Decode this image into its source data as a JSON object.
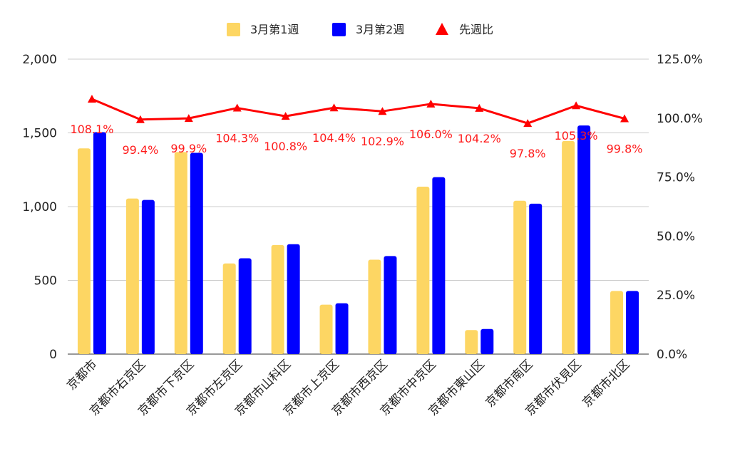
{
  "chart_data": {
    "type": "bar",
    "categories": [
      "京都市",
      "京都市右京区",
      "京都市下京区",
      "京都市左京区",
      "京都市山科区",
      "京都市上京区",
      "京都市西京区",
      "京都市中京区",
      "京都市東山区",
      "京都市南区",
      "京都市伏見区",
      "京都市北区"
    ],
    "series": [
      {
        "name": "3月第1週",
        "type": "bar",
        "axis": "left",
        "color": "#fdd663",
        "values": [
          1395,
          1055,
          1370,
          615,
          740,
          335,
          640,
          1135,
          163,
          1040,
          1445,
          428
        ]
      },
      {
        "name": "3月第2週",
        "type": "bar",
        "axis": "left",
        "color": "#0000ff",
        "values": [
          1505,
          1045,
          1365,
          650,
          745,
          345,
          665,
          1200,
          170,
          1020,
          1550,
          428
        ]
      },
      {
        "name": "先週比",
        "type": "line",
        "axis": "right",
        "marker": "triangle",
        "color": "#ff0000",
        "values": [
          108.1,
          99.4,
          99.9,
          104.3,
          100.8,
          104.4,
          102.9,
          106.0,
          104.2,
          97.8,
          105.3,
          99.8
        ]
      }
    ],
    "line_data_labels": [
      "108.1%",
      "99.4%",
      "99.9%",
      "104.3%",
      "100.8%",
      "104.4%",
      "102.9%",
      "106.0%",
      "104.2%",
      "97.8%",
      "105.3%",
      "99.8%"
    ],
    "y_left": {
      "ylim": [
        0,
        2000
      ],
      "ticks": [
        0,
        500,
        1000,
        1500,
        2000
      ],
      "tick_labels": [
        "0",
        "500",
        "1,000",
        "1,500",
        "2,000"
      ]
    },
    "y_right": {
      "ylim": [
        0,
        125
      ],
      "ticks": [
        0,
        25,
        50,
        75,
        100,
        125
      ],
      "tick_labels": [
        "0.0%",
        "25.0%",
        "50.0%",
        "75.0%",
        "100.0%",
        "125.0%"
      ]
    },
    "title": "",
    "xlabel": "",
    "ylabel": "",
    "grid": true,
    "legend_position": "top-center"
  }
}
